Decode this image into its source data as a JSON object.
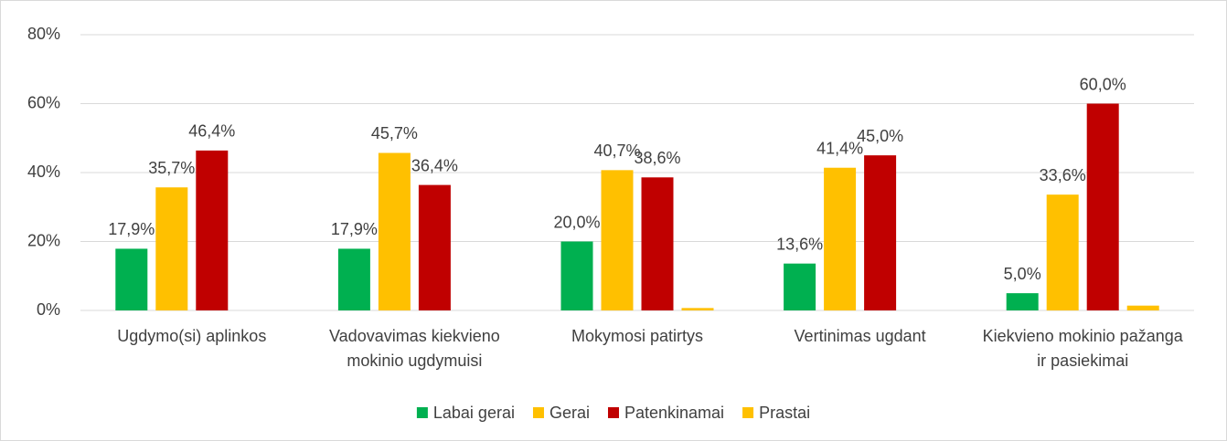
{
  "chart_data": {
    "type": "bar",
    "categories": [
      "Ugdymo(si) aplinkos",
      "Vadovavimas kiekvieno mokinio ugdymuisi",
      "Mokymosi patirtys",
      "Vertinimas ugdant",
      "Kiekvieno mokinio pažanga ir pasiekimai"
    ],
    "series": [
      {
        "name": "Labai gerai",
        "color": "#00b050",
        "values": [
          17.9,
          17.9,
          20.0,
          13.6,
          5.0
        ],
        "value_labels": [
          "17,9%",
          "17,9%",
          "20,0%",
          "13,6%",
          "5,0%"
        ]
      },
      {
        "name": "Gerai",
        "color": "#ffc000",
        "values": [
          35.7,
          45.7,
          40.7,
          41.4,
          33.6
        ],
        "value_labels": [
          "35,7%",
          "45,7%",
          "40,7%",
          "41,4%",
          "33,6%"
        ]
      },
      {
        "name": "Patenkinamai",
        "color": "#c00000",
        "values": [
          46.4,
          36.4,
          38.6,
          45.0,
          60.0
        ],
        "value_labels": [
          "46,4%",
          "36,4%",
          "38,6%",
          "45,0%",
          "60,0%"
        ]
      },
      {
        "name": "Prastai",
        "color": "#ffc000",
        "values": [
          0,
          0,
          0.7,
          0,
          1.4
        ]
      }
    ],
    "ylim": [
      0,
      80
    ],
    "yticks": [
      {
        "value": 0,
        "label": "0%"
      },
      {
        "value": 20,
        "label": "20%"
      },
      {
        "value": 40,
        "label": "40%"
      },
      {
        "value": 60,
        "label": "60%"
      },
      {
        "value": 80,
        "label": "80%"
      }
    ],
    "grid": true,
    "legend": "bottom"
  }
}
